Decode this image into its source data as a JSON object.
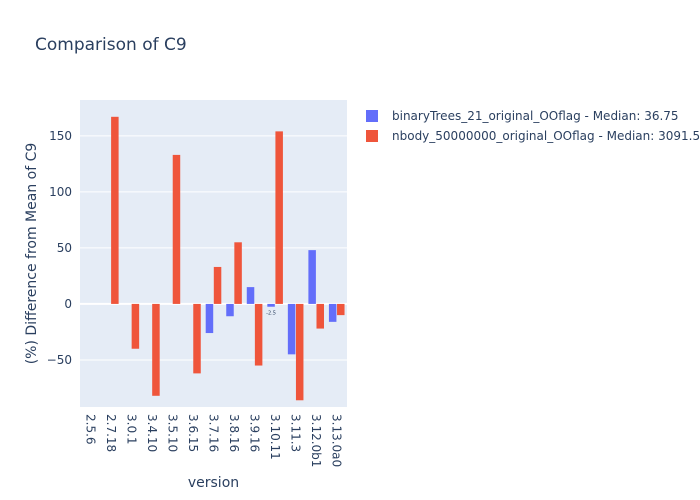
{
  "chart_data": {
    "type": "bar",
    "title": "Comparison of C9",
    "xlabel": "version",
    "ylabel": "(%) Difference from Mean of C9",
    "categories": [
      "2.5.6",
      "2.7.18",
      "3.0.1",
      "3.4.10",
      "3.5.10",
      "3.6.15",
      "3.7.16",
      "3.8.16",
      "3.9.16",
      "3.10.11",
      "3.11.3",
      "3.12.0b1",
      "3.13.0a0"
    ],
    "ylim": [
      -92,
      182
    ],
    "yticks": [
      -50,
      0,
      50,
      100,
      150
    ],
    "ytick_labels": [
      "−50",
      "0",
      "50",
      "100",
      "150"
    ],
    "grid": true,
    "legend_position": "right",
    "series": [
      {
        "name": "binaryTrees_21_original_OOflag - Median: 36.75",
        "color": "#636efa",
        "values": [
          null,
          null,
          null,
          null,
          null,
          null,
          -26,
          -11,
          15,
          -2.5,
          -45,
          48,
          -16
        ]
      },
      {
        "name": "nbody_50000000_original_OOflag - Median: 3091.50",
        "color": "#ef553b",
        "values": [
          null,
          167,
          -40,
          -82,
          133,
          -62,
          33,
          55,
          -55,
          154,
          -86,
          -22,
          -10
        ]
      }
    ],
    "annotations": [
      {
        "category": "3.10.11",
        "series": 0,
        "text": "-2.5"
      }
    ]
  },
  "style": {
    "plot_background": "#e5ecf6",
    "gridline_color": "#ffffff",
    "text_color": "#2a3f5f"
  }
}
